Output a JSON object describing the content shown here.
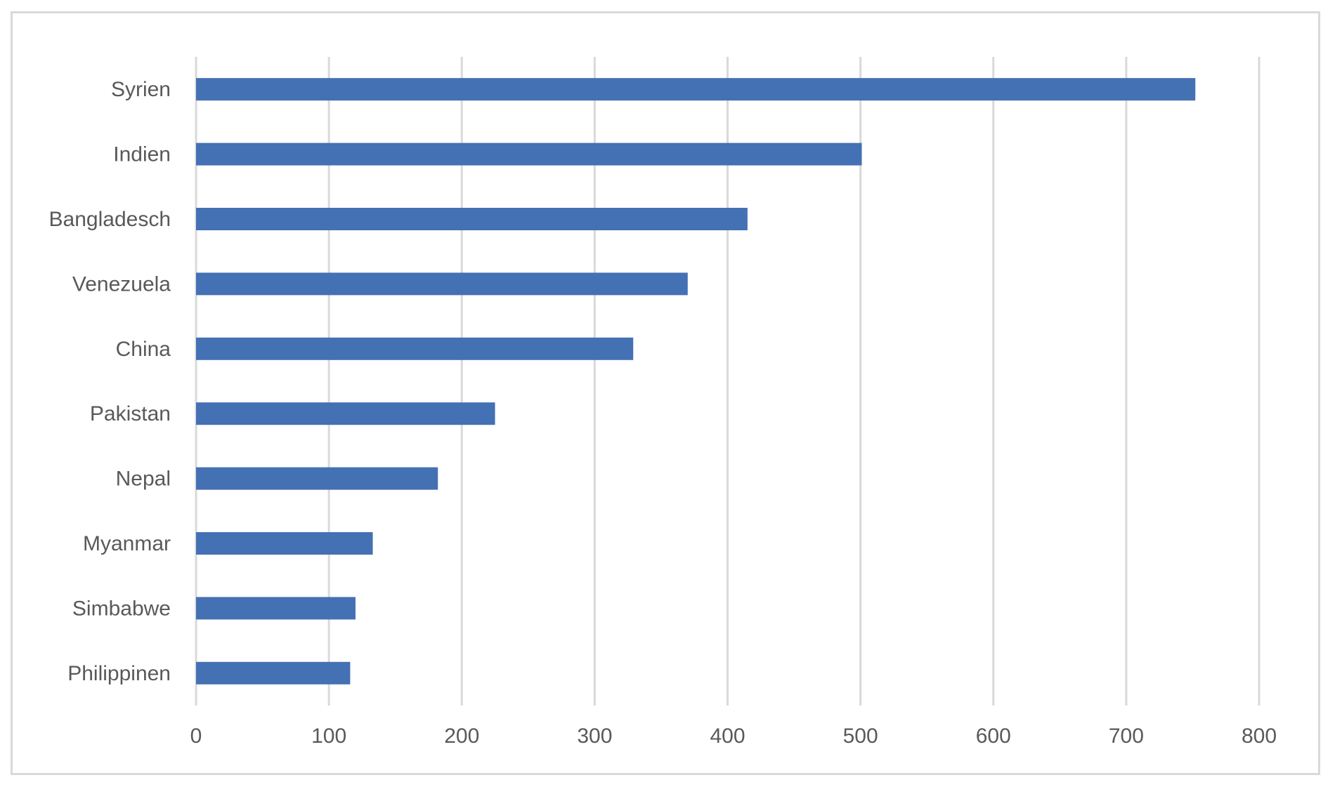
{
  "chart_data": {
    "type": "bar",
    "orientation": "horizontal",
    "title": "",
    "xlabel": "",
    "ylabel": "",
    "categories": [
      "Syrien",
      "Indien",
      "Bangladesch",
      "Venezuela",
      "China",
      "Pakistan",
      "Nepal",
      "Myanmar",
      "Simbabwe",
      "Philippinen"
    ],
    "values": [
      752,
      501,
      415,
      370,
      329,
      225,
      182,
      133,
      120,
      116
    ],
    "xlim": [
      0,
      800
    ],
    "xticks": [
      "0",
      "100",
      "200",
      "300",
      "400",
      "500",
      "600",
      "700",
      "800"
    ],
    "grid": "vertical",
    "legend": "none",
    "colors": {
      "bar": "#4470b4",
      "grid": "#d9d9d9",
      "text": "#595959",
      "frame": "#d9d9d9"
    }
  }
}
